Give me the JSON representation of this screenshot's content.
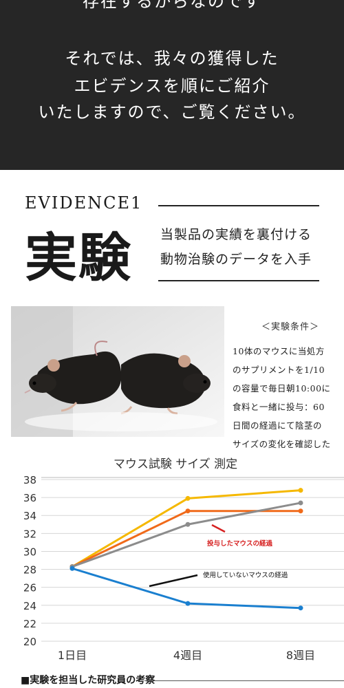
{
  "intro": {
    "line1": "存在するからなのです",
    "line2": "それでは、我々の獲得した",
    "line3": "エビデンスを順にご紹介",
    "line4": "いたしますので、ご覧ください。"
  },
  "evidence": {
    "label": "EVIDENCE1",
    "title": "実験",
    "subtitle_line1": "当製品の実績を裏付ける",
    "subtitle_line2": "動物治験のデータを入手"
  },
  "conditions": {
    "heading": "＜実験条件＞",
    "lines": [
      "10体のマウスに当処方",
      "のサプリメントを1/10",
      "の容量で毎日朝10:00に",
      "食料と一緒に投与：60",
      "日間の経過にて陰茎の",
      "サイズの変化を確認した"
    ]
  },
  "chart_data": {
    "type": "line",
    "title": "マウス試験 サイズ 測定",
    "categories": [
      "1日目",
      "4週目",
      "8週目"
    ],
    "ylim": [
      20,
      38
    ],
    "yticks": [
      20,
      22,
      24,
      26,
      28,
      30,
      32,
      34,
      36,
      38
    ],
    "grid": true,
    "series": [
      {
        "color": "#f5b800",
        "values": [
          28.3,
          35.9,
          36.8
        ]
      },
      {
        "color": "#f06a1a",
        "values": [
          28.3,
          34.5,
          34.5
        ]
      },
      {
        "color": "#8c8c8c",
        "values": [
          28.3,
          33.0,
          35.4
        ]
      },
      {
        "color": "#1a7fcf",
        "values": [
          28.1,
          24.2,
          23.7
        ]
      }
    ],
    "annotations": [
      {
        "text": "投与したマウスの経過",
        "color": "#d62020"
      },
      {
        "text": "使用していないマウスの経過",
        "color": "#111111"
      }
    ]
  },
  "footer": {
    "text": "■実験を担当した研究員の考察"
  }
}
